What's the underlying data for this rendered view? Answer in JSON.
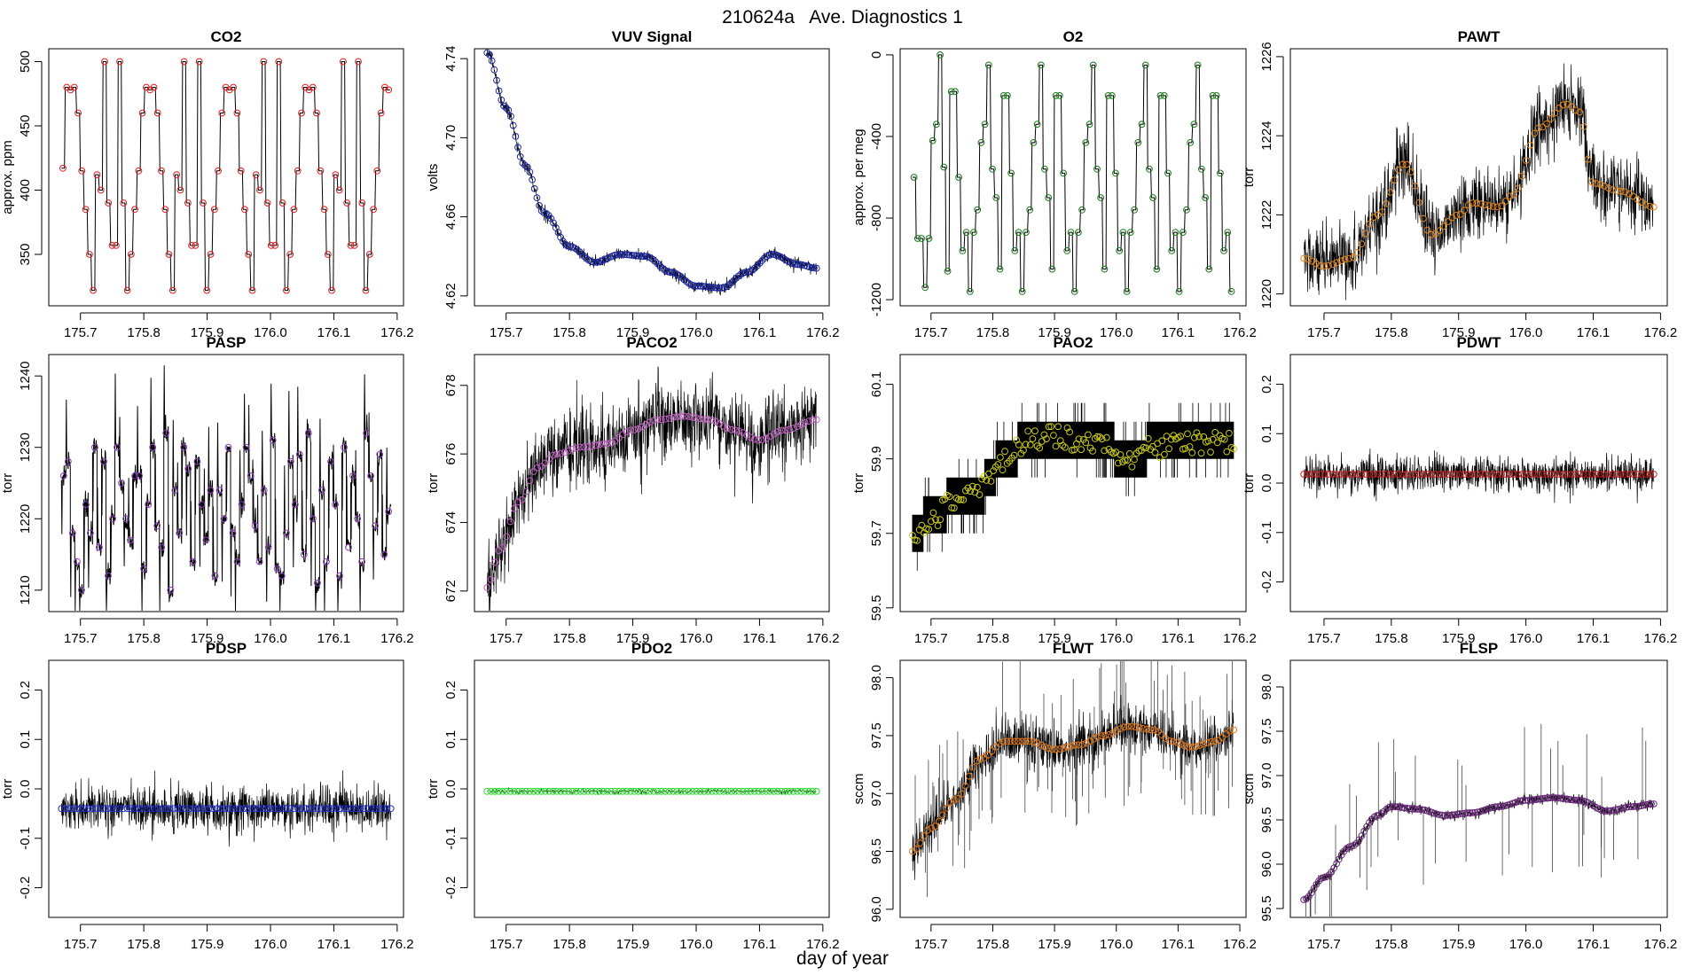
{
  "figure": {
    "title": "210624a   Ave. Diagnostics 1",
    "xlabel": "day of year"
  },
  "chart_data": [
    {
      "type": "line",
      "title": "CO2",
      "ylabel": "approx. ppm",
      "xlim": [
        175.65,
        176.21
      ],
      "ylim": [
        310,
        510
      ],
      "xticks": [
        175.7,
        175.8,
        175.9,
        176.0,
        176.1,
        176.2
      ],
      "xtick_labels": [
        "175.7",
        "175.8",
        "175.9",
        "176.0",
        "176.1",
        "176.2"
      ],
      "yticks": [
        350,
        400,
        450,
        500
      ],
      "ytick_labels": [
        "350",
        "400",
        "450",
        "500"
      ],
      "grid": false,
      "line_color": "#000000",
      "marker_color": "#e41a1c",
      "x_start": 175.67,
      "x_end": 176.19,
      "trace": {
        "kind": "square",
        "shape": [
          417,
          480,
          478,
          480,
          460,
          415,
          385,
          350,
          322,
          412,
          400,
          500,
          390,
          357,
          357,
          500,
          390,
          322,
          350,
          385,
          415,
          460,
          480,
          478,
          480,
          460,
          415,
          385,
          350,
          322,
          412,
          400,
          500,
          390,
          357,
          357,
          500,
          390,
          322,
          350,
          385,
          415,
          460,
          480,
          478,
          480,
          460,
          415,
          385,
          350,
          322,
          412,
          400,
          500,
          390,
          357,
          357,
          500,
          390,
          322,
          350,
          385,
          415,
          460,
          480,
          478,
          480,
          460,
          415,
          385,
          350,
          322,
          412,
          400,
          500,
          390,
          357,
          357,
          500,
          390,
          322,
          350,
          385,
          415,
          460,
          480,
          478
        ],
        "hold": 0.8,
        "noise": 0
      },
      "points": {
        "kind": "levels",
        "n": 86
      }
    },
    {
      "type": "line",
      "title": "VUV Signal",
      "ylabel": "volts",
      "xlim": [
        175.65,
        176.21
      ],
      "ylim": [
        4.615,
        4.745
      ],
      "xticks": [
        175.7,
        175.8,
        175.9,
        176.0,
        176.1,
        176.2
      ],
      "xtick_labels": [
        "175.7",
        "175.8",
        "175.9",
        "176.0",
        "176.1",
        "176.2"
      ],
      "yticks": [
        4.62,
        4.66,
        4.7,
        4.74
      ],
      "ytick_labels": [
        "4.62",
        "4.66",
        "4.70",
        "4.74"
      ],
      "grid": false,
      "line_color": "#000000",
      "marker_color": "#1f2aa0",
      "x_start": 175.67,
      "x_end": 176.19,
      "trace": {
        "kind": "smooth",
        "knots_x": [
          175.67,
          175.7,
          175.73,
          175.76,
          175.8,
          175.84,
          175.88,
          175.92,
          175.96,
          176.0,
          176.04,
          176.08,
          176.12,
          176.16,
          176.19
        ],
        "knots_y": [
          4.743,
          4.715,
          4.686,
          4.662,
          4.645,
          4.637,
          4.641,
          4.64,
          4.632,
          4.625,
          4.624,
          4.632,
          4.641,
          4.636,
          4.634
        ],
        "noise": 0.0015,
        "density": 3
      },
      "points": {
        "kind": "trend",
        "n": 140
      }
    },
    {
      "type": "line",
      "title": "O2",
      "ylabel": "approx. per meg",
      "xlim": [
        175.65,
        176.21
      ],
      "ylim": [
        -1230,
        30
      ],
      "xticks": [
        175.7,
        175.8,
        175.9,
        176.0,
        176.1,
        176.2
      ],
      "xtick_labels": [
        "175.7",
        "175.8",
        "175.9",
        "176.0",
        "176.1",
        "176.2"
      ],
      "yticks": [
        -1200,
        -800,
        -400,
        0
      ],
      "ytick_labels": [
        "-1200",
        "-800",
        "-400",
        "0"
      ],
      "grid": false,
      "line_color": "#000000",
      "marker_color": "#1a7a1a",
      "x_start": 175.67,
      "x_end": 176.19,
      "trace": {
        "kind": "square",
        "shape": [
          -600,
          -900,
          -900,
          -1140,
          -900,
          -420,
          -340,
          0,
          -550,
          -1060,
          -180,
          -180,
          -600,
          -960,
          -870,
          -1160,
          -870,
          -760,
          -430,
          -340,
          -50,
          -560,
          -700,
          -1050,
          -200,
          -200,
          -580,
          -960,
          -870,
          -1160,
          -870,
          -760,
          -430,
          -340,
          -50,
          -560,
          -700,
          -1050,
          -200,
          -200,
          -580,
          -960,
          -870,
          -1160,
          -870,
          -760,
          -430,
          -340,
          -50,
          -560,
          -700,
          -1050,
          -200,
          -200,
          -580,
          -960,
          -870,
          -1160,
          -870,
          -760,
          -430,
          -340,
          -50,
          -560,
          -700,
          -1050,
          -200,
          -200,
          -580,
          -960,
          -870,
          -1160,
          -870,
          -760,
          -430,
          -340,
          -50,
          -560,
          -700,
          -1050,
          -200,
          -200,
          -580,
          -960,
          -870,
          -1160
        ],
        "hold": 0.8,
        "noise": 0
      },
      "points": {
        "kind": "levels",
        "n": 86
      }
    },
    {
      "type": "line",
      "title": "PAWT",
      "ylabel": "torr",
      "xlim": [
        175.65,
        176.21
      ],
      "ylim": [
        1219.7,
        1226.2
      ],
      "xticks": [
        175.7,
        175.8,
        175.9,
        176.0,
        176.1,
        176.2
      ],
      "xtick_labels": [
        "175.7",
        "175.8",
        "175.9",
        "176.0",
        "176.1",
        "176.2"
      ],
      "yticks": [
        1220,
        1222,
        1224,
        1226
      ],
      "ytick_labels": [
        "1220",
        "1222",
        "1224",
        "1226"
      ],
      "grid": false,
      "line_color": "#000000",
      "marker_color": "#e0861a",
      "x_start": 175.67,
      "x_end": 176.19,
      "trace": {
        "kind": "smooth",
        "knots_x": [
          175.67,
          175.7,
          175.74,
          175.78,
          175.82,
          175.86,
          175.9,
          175.92,
          175.96,
          175.98,
          176.02,
          176.06,
          176.08,
          176.1,
          176.14,
          176.19
        ],
        "knots_y": [
          1220.9,
          1220.7,
          1220.9,
          1222.0,
          1223.3,
          1221.5,
          1222.0,
          1222.3,
          1222.2,
          1222.5,
          1224.2,
          1224.8,
          1224.6,
          1222.8,
          1222.6,
          1222.2
        ],
        "noise": 0.45,
        "density": 3
      },
      "points": {
        "kind": "trend",
        "n": 86
      }
    },
    {
      "type": "line",
      "title": "PASP",
      "ylabel": "torr",
      "xlim": [
        175.65,
        176.21
      ],
      "ylim": [
        1207,
        1243
      ],
      "xticks": [
        175.7,
        175.8,
        175.9,
        176.0,
        176.1,
        176.2
      ],
      "xtick_labels": [
        "175.7",
        "175.8",
        "175.9",
        "176.0",
        "176.1",
        "176.2"
      ],
      "yticks": [
        1210,
        1220,
        1230,
        1240
      ],
      "ytick_labels": [
        "1210",
        "1220",
        "1230",
        "1240"
      ],
      "grid": false,
      "line_color": "#000000",
      "marker_color": "#8a3ec2",
      "x_start": 175.67,
      "x_end": 176.19,
      "trace": {
        "kind": "spiky",
        "base": [
          1226,
          1228,
          1218,
          1214,
          1210,
          1222,
          1218,
          1230,
          1216,
          1228,
          1212,
          1220,
          1230,
          1225,
          1220,
          1217,
          1226,
          1226,
          1213,
          1222,
          1230,
          1219,
          1216,
          1232,
          1210,
          1224,
          1218,
          1230,
          1227,
          1214,
          1228,
          1222,
          1217,
          1224,
          1212,
          1224,
          1220,
          1230,
          1218,
          1214,
          1222,
          1230,
          1226,
          1219,
          1214,
          1224,
          1216,
          1231,
          1213,
          1212,
          1218,
          1228,
          1222,
          1229,
          1215,
          1232,
          1220,
          1211,
          1224,
          1214,
          1228,
          1222,
          1212,
          1230,
          1216,
          1226,
          1220,
          1214,
          1232,
          1226,
          1219,
          1229,
          1215,
          1221
        ],
        "spike": 9,
        "noise": 0.8
      },
      "points": {
        "kind": "levels",
        "n": 74
      }
    },
    {
      "type": "line",
      "title": "PACO2",
      "ylabel": "torr",
      "xlim": [
        175.65,
        176.21
      ],
      "ylim": [
        671.4,
        678.9
      ],
      "xticks": [
        175.7,
        175.8,
        175.9,
        176.0,
        176.1,
        176.2
      ],
      "xtick_labels": [
        "175.7",
        "175.8",
        "175.9",
        "176.0",
        "176.1",
        "176.2"
      ],
      "yticks": [
        672,
        674,
        676,
        678
      ],
      "ytick_labels": [
        "672",
        "674",
        "676",
        "678"
      ],
      "grid": false,
      "line_color": "#000000",
      "marker_color": "#c25ec2",
      "x_start": 175.67,
      "x_end": 176.19,
      "trace": {
        "kind": "smooth",
        "knots_x": [
          175.67,
          175.69,
          175.72,
          175.75,
          175.78,
          175.82,
          175.86,
          175.9,
          175.94,
          175.98,
          176.02,
          176.06,
          176.1,
          176.14,
          176.19
        ],
        "knots_y": [
          672.1,
          673.2,
          674.6,
          675.6,
          676.0,
          676.2,
          676.3,
          676.7,
          677.0,
          677.1,
          677.0,
          676.7,
          676.4,
          676.7,
          677.0
        ],
        "noise": 0.55,
        "density": 3
      },
      "points": {
        "kind": "trend",
        "n": 86
      }
    },
    {
      "type": "line",
      "title": "PAO2",
      "ylabel": "torr",
      "xlim": [
        175.65,
        176.21
      ],
      "ylim": [
        59.49,
        60.18
      ],
      "xticks": [
        175.7,
        175.8,
        175.9,
        176.0,
        176.1,
        176.2
      ],
      "xtick_labels": [
        "175.7",
        "175.8",
        "175.9",
        "176.0",
        "176.1",
        "176.2"
      ],
      "yticks": [
        59.5,
        59.7,
        59.9,
        60.1
      ],
      "ytick_labels": [
        "59.5",
        "59.7",
        "59.9",
        "60.1"
      ],
      "grid": false,
      "line_color": "#000000",
      "marker_color": "#c8c81a",
      "x_start": 175.67,
      "x_end": 176.19,
      "trace": {
        "kind": "quantized",
        "knots_x": [
          175.67,
          175.7,
          175.74,
          175.78,
          175.82,
          175.86,
          175.9,
          175.94,
          175.98,
          176.02,
          176.06,
          176.1,
          176.14,
          176.19
        ],
        "knots_y": [
          59.7,
          59.74,
          59.79,
          59.82,
          59.9,
          59.95,
          59.96,
          59.95,
          59.94,
          59.9,
          59.93,
          59.94,
          59.94,
          59.95
        ],
        "step": 0.05,
        "spread": 1,
        "density": 3
      },
      "points": {
        "kind": "jitter",
        "n": 140,
        "amp": 0.03
      }
    },
    {
      "type": "line",
      "title": "PDWT",
      "ylabel": "torr",
      "xlim": [
        175.65,
        176.21
      ],
      "ylim": [
        -0.26,
        0.26
      ],
      "xticks": [
        175.7,
        175.8,
        175.9,
        176.0,
        176.1,
        176.2
      ],
      "xtick_labels": [
        "175.7",
        "175.8",
        "175.9",
        "176.0",
        "176.1",
        "176.2"
      ],
      "yticks": [
        -0.2,
        -0.1,
        0.0,
        0.1,
        0.2
      ],
      "ytick_labels": [
        "-0.2",
        "-0.1",
        "0.0",
        "0.1",
        "0.2"
      ],
      "grid": false,
      "line_color": "#000000",
      "marker_color": "#c02020",
      "x_start": 175.67,
      "x_end": 176.19,
      "trace": {
        "kind": "smooth",
        "knots_x": [
          175.67,
          176.19
        ],
        "knots_y": [
          0.018,
          0.018
        ],
        "noise": 0.018,
        "density": 3
      },
      "points": {
        "kind": "trend",
        "n": 86
      }
    },
    {
      "type": "line",
      "title": "PDSP",
      "ylabel": "torr",
      "xlim": [
        175.65,
        176.21
      ],
      "ylim": [
        -0.26,
        0.26
      ],
      "xticks": [
        175.7,
        175.8,
        175.9,
        176.0,
        176.1,
        176.2
      ],
      "xtick_labels": [
        "175.7",
        "175.8",
        "175.9",
        "176.0",
        "176.1",
        "176.2"
      ],
      "yticks": [
        -0.2,
        -0.1,
        0.0,
        0.1,
        0.2
      ],
      "ytick_labels": [
        "-0.2",
        "-0.1",
        "0.0",
        "0.1",
        "0.2"
      ],
      "grid": false,
      "line_color": "#000000",
      "marker_color": "#2030c8",
      "x_start": 175.67,
      "x_end": 176.19,
      "trace": {
        "kind": "smooth",
        "knots_x": [
          175.67,
          176.19
        ],
        "knots_y": [
          -0.04,
          -0.04
        ],
        "noise": 0.022,
        "density": 3
      },
      "points": {
        "kind": "trend",
        "n": 86
      }
    },
    {
      "type": "line",
      "title": "PDO2",
      "ylabel": "torr",
      "xlim": [
        175.65,
        176.21
      ],
      "ylim": [
        -0.26,
        0.26
      ],
      "xticks": [
        175.7,
        175.8,
        175.9,
        176.0,
        176.1,
        176.2
      ],
      "xtick_labels": [
        "175.7",
        "175.8",
        "175.9",
        "176.0",
        "176.1",
        "176.2"
      ],
      "yticks": [
        -0.2,
        -0.1,
        0.0,
        0.1,
        0.2
      ],
      "ytick_labels": [
        "-0.2",
        "-0.1",
        "0.0",
        "0.1",
        "0.2"
      ],
      "grid": false,
      "line_color": "#000000",
      "marker_color": "#22e022",
      "x_start": 175.67,
      "x_end": 176.19,
      "trace": {
        "kind": "smooth",
        "knots_x": [
          175.67,
          176.19
        ],
        "knots_y": [
          -0.005,
          -0.005
        ],
        "noise": 0.002,
        "density": 1
      },
      "points": {
        "kind": "trend",
        "n": 86
      }
    },
    {
      "type": "line",
      "title": "FLWT",
      "ylabel": "sccm",
      "xlim": [
        175.65,
        176.21
      ],
      "ylim": [
        95.93,
        98.15
      ],
      "xticks": [
        175.7,
        175.8,
        175.9,
        176.0,
        176.1,
        176.2
      ],
      "xtick_labels": [
        "175.7",
        "175.8",
        "175.9",
        "176.0",
        "176.1",
        "176.2"
      ],
      "yticks": [
        96.0,
        96.5,
        97.0,
        97.5,
        98.0
      ],
      "ytick_labels": [
        "96.0",
        "96.5",
        "97.0",
        "97.5",
        "98.0"
      ],
      "grid": false,
      "line_color": "#000000",
      "marker_color": "#e07818",
      "x_start": 175.67,
      "x_end": 176.19,
      "trace": {
        "kind": "smooth",
        "knots_x": [
          175.67,
          175.7,
          175.74,
          175.78,
          175.82,
          175.86,
          175.9,
          175.94,
          175.98,
          176.02,
          176.06,
          176.09,
          176.12,
          176.16,
          176.19
        ],
        "knots_y": [
          96.5,
          96.7,
          96.95,
          97.3,
          97.45,
          97.45,
          97.38,
          97.42,
          97.5,
          97.58,
          97.55,
          97.45,
          97.4,
          97.45,
          97.55
        ],
        "noise": 0.1,
        "spikes": {
          "count": 110,
          "amp": 0.7
        },
        "density": 3
      },
      "points": {
        "kind": "trend",
        "n": 86
      }
    },
    {
      "type": "line",
      "title": "FLSP",
      "ylabel": "sccm",
      "xlim": [
        175.65,
        176.21
      ],
      "ylim": [
        95.4,
        98.3
      ],
      "xticks": [
        175.7,
        175.8,
        175.9,
        176.0,
        176.1,
        176.2
      ],
      "xtick_labels": [
        "175.7",
        "175.8",
        "175.9",
        "176.0",
        "176.1",
        "176.2"
      ],
      "yticks": [
        95.5,
        96.0,
        96.5,
        97.0,
        97.5,
        98.0
      ],
      "ytick_labels": [
        "95.5",
        "96.0",
        "96.5",
        "97.0",
        "97.5",
        "98.0"
      ],
      "grid": false,
      "line_color": "#000000",
      "marker_color": "#6a2a7a",
      "x_start": 175.67,
      "x_end": 176.19,
      "trace": {
        "kind": "smooth",
        "knots_x": [
          175.67,
          175.7,
          175.74,
          175.78,
          175.8,
          175.84,
          175.88,
          175.92,
          175.96,
          176.0,
          176.04,
          176.08,
          176.12,
          176.16,
          176.19
        ],
        "knots_y": [
          95.6,
          95.85,
          96.2,
          96.55,
          96.65,
          96.62,
          96.55,
          96.58,
          96.65,
          96.72,
          96.75,
          96.72,
          96.6,
          96.65,
          96.68
        ],
        "noise": 0.03,
        "spikes": {
          "count": 45,
          "amp": 0.9
        },
        "density": 3
      },
      "points": {
        "kind": "trend",
        "n": 140
      }
    }
  ]
}
